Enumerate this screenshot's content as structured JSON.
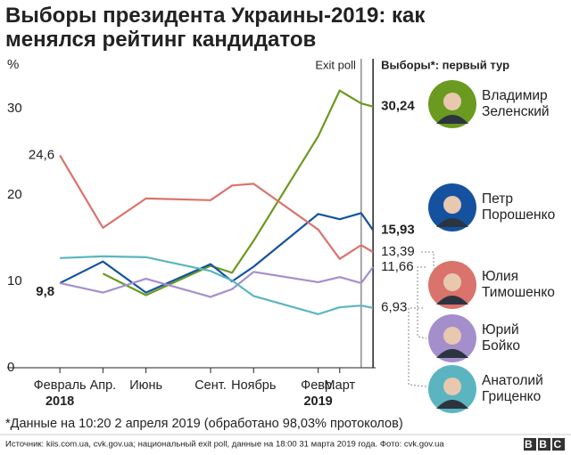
{
  "chart_data": {
    "type": "line",
    "title": "Выборы президента Украины-2019: как менялся рейтинг кандидатов",
    "y_label": "%",
    "exit_poll_label": "Exit poll",
    "election_label": "Выборы*: первый тур",
    "footnote": "*Данные на 10:20 2 апреля 2019 (обработано 98,03% протоколов)",
    "source": "Источник: kiis.com.ua, cvk.gov.ua; национальный exit poll, данные на 18:00 31 марта 2019 года. Фото: cvk.gov.ua",
    "logo": "BBC",
    "x": [
      0,
      2,
      4,
      7,
      8,
      9,
      12,
      13,
      14,
      14.55
    ],
    "xlim": [
      -1,
      15
    ],
    "xticks": [
      {
        "value": 0,
        "label": "Февраль"
      },
      {
        "value": 2,
        "label": "Апр."
      },
      {
        "value": 4,
        "label": "Июнь"
      },
      {
        "value": 7,
        "label": "Сент."
      },
      {
        "value": 9,
        "label": "Ноябрь"
      },
      {
        "value": 12,
        "label": "Февр."
      },
      {
        "value": 13,
        "label": "Март"
      }
    ],
    "year_labels": [
      "2018",
      null,
      null,
      null,
      null,
      "2019",
      null
    ],
    "exit_poll_x": 14,
    "election_x": 14.55,
    "ylim": [
      0,
      35
    ],
    "yticks": [
      0,
      10,
      20,
      30
    ],
    "grid": false,
    "series": [
      {
        "name": "Владимир Зеленский",
        "color": "#6a9a1f",
        "values": [
          null,
          10.9,
          8.4,
          11.8,
          11.0,
          14.7,
          26.8,
          32.1,
          30.6,
          30.24
        ],
        "value_labels": [
          null,
          null,
          null,
          null,
          null,
          null,
          null,
          null,
          null,
          "30,24"
        ]
      },
      {
        "name": "Петр Порошенко",
        "color": "#1452a0",
        "values": [
          9.8,
          12.3,
          8.7,
          12.0,
          10.0,
          11.7,
          17.8,
          17.2,
          17.9,
          15.93
        ],
        "value_labels": [
          "9,8",
          null,
          null,
          null,
          null,
          null,
          null,
          null,
          null,
          "15,93"
        ]
      },
      {
        "name": "Юлия Тимошенко",
        "color": "#d9736b",
        "values": [
          24.6,
          16.2,
          19.6,
          19.4,
          21.1,
          21.3,
          16.0,
          12.6,
          14.2,
          13.39
        ],
        "value_labels": [
          "24,6",
          null,
          null,
          null,
          null,
          null,
          null,
          null,
          null,
          "13,39"
        ]
      },
      {
        "name": "Юрий Бойко",
        "color": "#a48fcc",
        "values": [
          9.8,
          8.7,
          10.3,
          8.2,
          9.1,
          11.1,
          9.9,
          10.5,
          9.8,
          11.66
        ],
        "value_labels": [
          null,
          null,
          null,
          null,
          null,
          null,
          null,
          null,
          null,
          "11,66"
        ]
      },
      {
        "name": "Анатолий Гриценко",
        "color": "#5bb5c0",
        "values": [
          12.7,
          12.9,
          12.8,
          11.2,
          10.1,
          8.3,
          6.2,
          7.0,
          7.2,
          6.93
        ],
        "value_labels": [
          null,
          null,
          null,
          null,
          null,
          null,
          null,
          null,
          null,
          "6,93"
        ]
      }
    ]
  }
}
